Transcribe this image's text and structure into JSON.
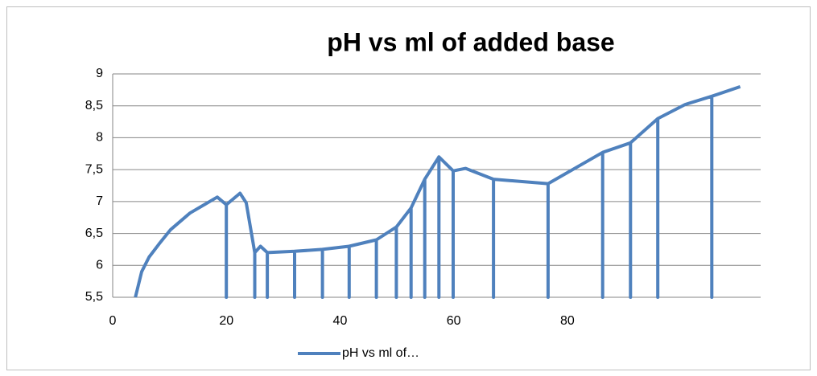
{
  "chart_data": {
    "type": "line",
    "title": "pH vs ml of added base",
    "x": [
      4,
      5.1,
      6.4,
      8.2,
      10.2,
      13.6,
      18.4,
      20,
      20,
      20,
      22.4,
      23.5,
      25,
      25,
      25,
      26,
      27.2,
      27.2,
      27.2,
      32,
      32,
      32,
      36.9,
      36.9,
      36.9,
      41.6,
      41.6,
      41.6,
      46.4,
      46.4,
      46.4,
      49.9,
      49.9,
      49.9,
      52.5,
      52.5,
      52.5,
      54.9,
      54.9,
      54.9,
      57.4,
      57.4,
      57.4,
      59.9,
      59.9,
      59.9,
      62.1,
      67,
      67,
      67,
      76.6,
      76.6,
      76.6,
      86.2,
      86.2,
      86.2,
      91.1,
      91.1,
      91.1,
      95.9,
      95.9,
      95.9,
      100.7,
      105.4,
      105.4,
      105.4,
      110.4
    ],
    "series": [
      {
        "name": "pH vs ml of…",
        "color": "#4f81bd",
        "values": [
          5.5,
          5.9,
          6.13,
          6.34,
          6.56,
          6.82,
          7.07,
          6.95,
          5.5,
          6.95,
          7.13,
          6.98,
          6.2,
          5.5,
          6.2,
          6.3,
          6.2,
          5.5,
          6.2,
          6.22,
          5.5,
          6.22,
          6.25,
          5.5,
          6.25,
          6.3,
          5.5,
          6.3,
          6.4,
          5.5,
          6.4,
          6.6,
          5.5,
          6.6,
          6.9,
          5.5,
          6.9,
          7.35,
          5.5,
          7.35,
          7.7,
          5.5,
          7.7,
          7.48,
          5.5,
          7.48,
          7.52,
          7.35,
          5.5,
          7.35,
          7.28,
          5.5,
          7.28,
          7.77,
          5.5,
          7.77,
          7.92,
          5.5,
          7.92,
          8.3,
          5.5,
          8.3,
          8.52,
          8.65,
          5.5,
          8.65,
          8.8
        ]
      }
    ],
    "xlim": [
      0,
      114
    ],
    "xticks": [
      0,
      20,
      40,
      60,
      80
    ],
    "ylim": [
      5.5,
      9
    ],
    "yticks": [
      {
        "value": 5.5,
        "label": "5,5"
      },
      6,
      {
        "value": 6.5,
        "label": "6,5"
      },
      7,
      {
        "value": 7.5,
        "label": "7,5"
      },
      8,
      {
        "value": 8.5,
        "label": "8,5"
      },
      9
    ],
    "grid": true,
    "legend": "bottom"
  }
}
